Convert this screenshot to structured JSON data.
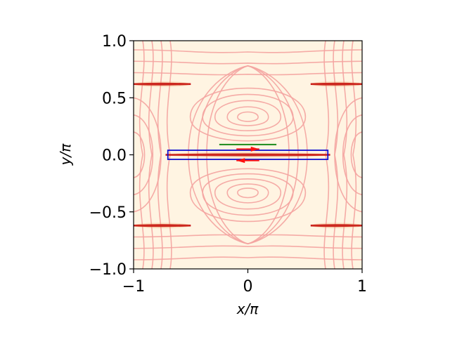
{
  "chart_data": {
    "type": "heatmap",
    "title": "",
    "xlabel": "x/π",
    "ylabel": "y/π",
    "xlim": [
      -1,
      1
    ],
    "ylim": [
      -1,
      1
    ],
    "x_ticks": [
      -1,
      0,
      1
    ],
    "x_tick_labels": [
      "−1",
      "0",
      "1"
    ],
    "y_ticks": [
      -1.0,
      -0.5,
      0.0,
      0.5,
      1.0
    ],
    "y_tick_labels": [
      "−1.0",
      "−0.5",
      "0.0",
      "0.5",
      "1.0"
    ],
    "grid": false,
    "background_color": "#fff4e2",
    "contour_color": "#f4a3a0",
    "current_sheets": [
      {
        "x": [
          -0.72,
          0.72
        ],
        "y": 0.0
      },
      {
        "x": [
          -1.0,
          -0.5
        ],
        "y": 0.62
      },
      {
        "x": [
          0.55,
          1.0
        ],
        "y": 0.62
      },
      {
        "x": [
          -1.0,
          -0.5
        ],
        "y": -0.62
      },
      {
        "x": [
          0.55,
          1.0
        ],
        "y": -0.62
      }
    ],
    "sheet_color": "#c0000a",
    "overlays": {
      "blue_box": {
        "x": [
          -0.7,
          0.7
        ],
        "y": [
          -0.04,
          0.04
        ],
        "color": "#1010d0"
      },
      "green_line": {
        "x": [
          -0.25,
          0.25
        ],
        "y": 0.09,
        "color": "#1a8a1a"
      },
      "arrows": [
        {
          "x": [
            -0.1,
            0.1
          ],
          "y": 0.05,
          "direction": "right",
          "color": "#ff1010"
        },
        {
          "x": [
            -0.1,
            0.1
          ],
          "y": -0.05,
          "direction": "left",
          "color": "#ff1010"
        }
      ]
    }
  }
}
